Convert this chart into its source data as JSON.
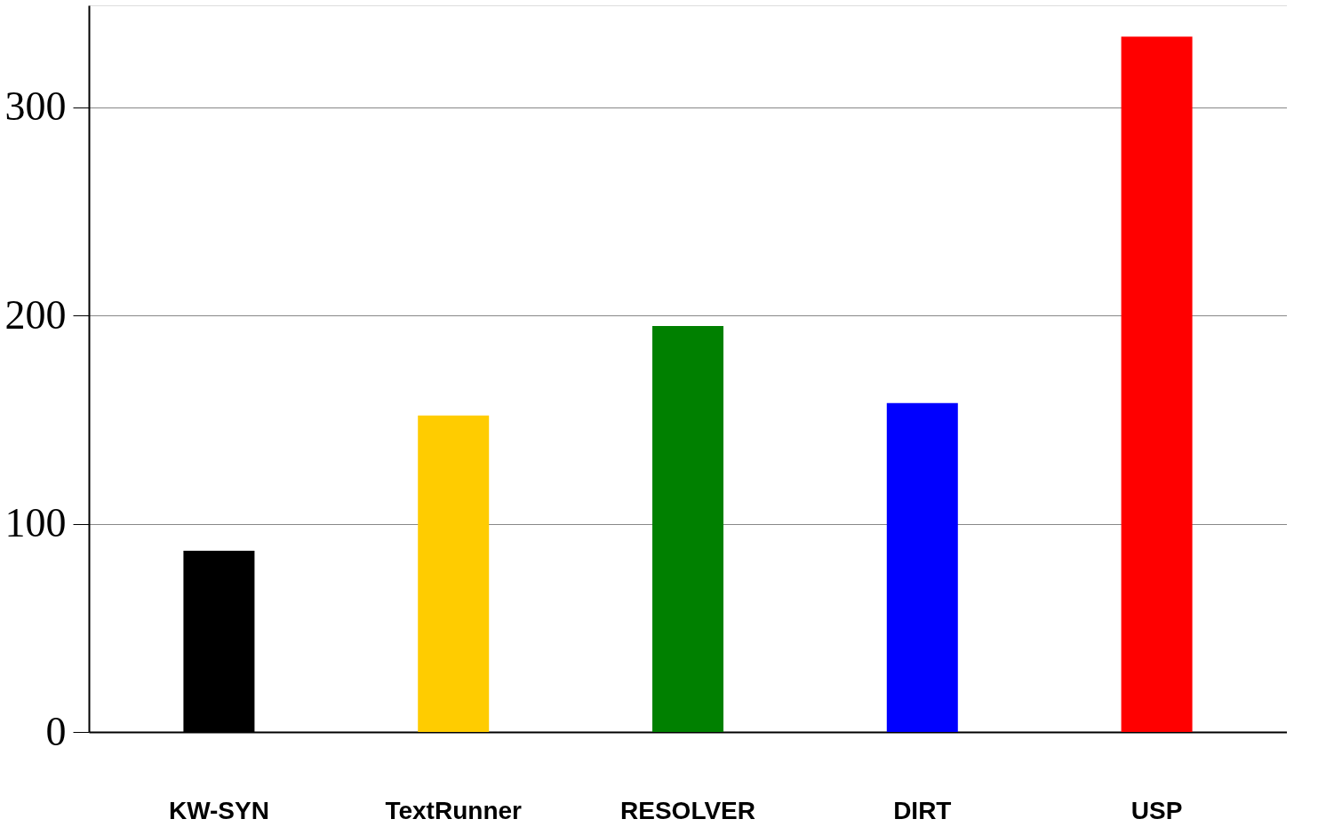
{
  "chart_data": {
    "type": "bar",
    "categories": [
      "KW-SYN",
      "TextRunner",
      "RESOLVER",
      "DIRT",
      "USP"
    ],
    "values": [
      87,
      152,
      195,
      158,
      334
    ],
    "colors": [
      "#000000",
      "#ffcc00",
      "#008000",
      "#0000ff",
      "#ff0000"
    ],
    "ylim": [
      0,
      349
    ],
    "yticks": [
      0,
      100,
      200,
      300
    ],
    "grid": "y",
    "legend": false
  }
}
